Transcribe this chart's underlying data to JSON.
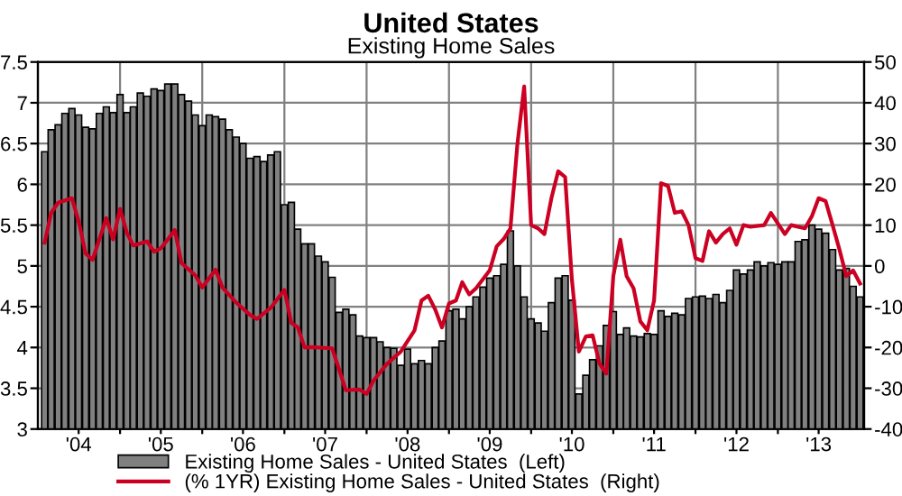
{
  "chart_data": {
    "type": "bar",
    "title": "United States",
    "subtitle": "Existing Home Sales",
    "x": [
      "2004-02",
      "2004-03",
      "2004-04",
      "2004-05",
      "2004-06",
      "2004-07",
      "2004-08",
      "2004-09",
      "2004-10",
      "2004-11",
      "2004-12",
      "2005-01",
      "2005-02",
      "2005-03",
      "2005-04",
      "2005-05",
      "2005-06",
      "2005-07",
      "2005-08",
      "2005-09",
      "2005-10",
      "2005-11",
      "2005-12",
      "2006-01",
      "2006-02",
      "2006-03",
      "2006-04",
      "2006-05",
      "2006-06",
      "2006-07",
      "2006-08",
      "2006-09",
      "2006-10",
      "2006-11",
      "2006-12",
      "2007-01",
      "2007-02",
      "2007-03",
      "2007-04",
      "2007-05",
      "2007-06",
      "2007-07",
      "2007-08",
      "2007-09",
      "2007-10",
      "2007-11",
      "2007-12",
      "2008-01",
      "2008-02",
      "2008-03",
      "2008-04",
      "2008-05",
      "2008-06",
      "2008-07",
      "2008-08",
      "2008-09",
      "2008-10",
      "2008-11",
      "2008-12",
      "2009-01",
      "2009-02",
      "2009-03",
      "2009-04",
      "2009-05",
      "2009-06",
      "2009-07",
      "2009-08",
      "2009-09",
      "2009-10",
      "2009-11",
      "2009-12",
      "2010-01",
      "2010-02",
      "2010-03",
      "2010-04",
      "2010-05",
      "2010-06",
      "2010-07",
      "2010-08",
      "2010-09",
      "2010-10",
      "2010-11",
      "2010-12",
      "2011-01",
      "2011-02",
      "2011-03",
      "2011-04",
      "2011-05",
      "2011-06",
      "2011-07",
      "2011-08",
      "2011-09",
      "2011-10",
      "2011-11",
      "2011-12",
      "2012-01",
      "2012-02",
      "2012-03",
      "2012-04",
      "2012-05",
      "2012-06",
      "2012-07",
      "2012-08",
      "2012-09",
      "2012-10",
      "2012-11",
      "2012-12",
      "2013-01",
      "2013-02",
      "2013-03",
      "2013-04",
      "2013-05",
      "2013-06",
      "2013-07",
      "2013-08",
      "2013-09",
      "2013-10",
      "2013-11",
      "2013-12",
      "2014-01"
    ],
    "series": [
      {
        "name": "Existing Home Sales - United States  (Left)",
        "color": "#808080",
        "values": [
          6.4,
          6.67,
          6.73,
          6.87,
          6.93,
          6.85,
          6.7,
          6.68,
          6.87,
          6.95,
          6.88,
          7.1,
          6.88,
          6.95,
          7.12,
          7.08,
          7.17,
          7.15,
          7.23,
          7.23,
          7.1,
          7.02,
          6.85,
          6.72,
          6.85,
          6.83,
          6.8,
          6.67,
          6.58,
          6.5,
          6.32,
          6.34,
          6.28,
          6.36,
          6.4,
          5.75,
          5.78,
          5.45,
          5.27,
          5.27,
          5.12,
          5.05,
          4.86,
          4.43,
          4.47,
          4.4,
          4.14,
          4.12,
          4.12,
          4.07,
          4.0,
          3.99,
          3.78,
          3.98,
          3.8,
          3.84,
          3.8,
          4.0,
          4.08,
          4.45,
          4.47,
          4.35,
          4.5,
          4.62,
          4.74,
          4.85,
          4.88,
          5.02,
          5.43,
          5.0,
          4.62,
          4.35,
          4.3,
          4.2,
          4.55,
          4.85,
          4.88,
          4.58,
          3.43,
          3.66,
          3.85,
          4.02,
          4.27,
          4.44,
          4.16,
          4.24,
          4.14,
          4.13,
          4.17,
          4.16,
          4.45,
          4.38,
          4.42,
          4.4,
          4.6,
          4.62,
          4.63,
          4.6,
          4.65,
          4.55,
          4.7,
          4.95,
          4.9,
          4.95,
          5.05,
          5.0,
          5.04,
          5.02,
          5.05,
          5.05,
          5.3,
          5.32,
          5.5,
          5.45,
          5.4,
          5.2,
          4.95,
          4.97,
          4.75,
          4.62
        ]
      },
      {
        "name": "(% 1YR) Existing Home Sales - United States  (Right)",
        "type": "line",
        "axis": "y2",
        "color": "#cc0022",
        "x": [
          "2004-02",
          "2004-03",
          "2004-04",
          "2004-06",
          "2004-07",
          "2004-08",
          "2004-09",
          "2004-10",
          "2004-11",
          "2004-12",
          "2005-01",
          "2005-02",
          "2005-03",
          "2005-05",
          "2005-06",
          "2005-07",
          "2005-08",
          "2005-09",
          "2005-10",
          "2005-12",
          "2006-01",
          "2006-03",
          "2006-04",
          "2006-06",
          "2006-08",
          "2006-09",
          "2006-11",
          "2007-01",
          "2007-02",
          "2007-03",
          "2007-04",
          "2007-05",
          "2007-08",
          "2007-09",
          "2007-10",
          "2007-12",
          "2008-01",
          "2008-02",
          "2008-04",
          "2008-06",
          "2008-08",
          "2008-09",
          "2008-10",
          "2008-11",
          "2008-12",
          "2009-01",
          "2009-02",
          "2009-03",
          "2009-04",
          "2009-05",
          "2009-07",
          "2009-08",
          "2009-09",
          "2009-10",
          "2009-11",
          "2009-12",
          "2010-01",
          "2010-02",
          "2010-03",
          "2010-04",
          "2010-05",
          "2010-06",
          "2010-07",
          "2010-08",
          "2010-09",
          "2010-10",
          "2010-11",
          "2010-12",
          "2011-01",
          "2011-02",
          "2011-03",
          "2011-04",
          "2011-05",
          "2011-06",
          "2011-07",
          "2011-08",
          "2011-09",
          "2011-10",
          "2011-11",
          "2011-12",
          "2012-01",
          "2012-02",
          "2012-03",
          "2012-04",
          "2012-05",
          "2012-06",
          "2012-07",
          "2012-08",
          "2012-09",
          "2012-11",
          "2012-12",
          "2013-02",
          "2013-03",
          "2013-05",
          "2013-06",
          "2013-07",
          "2013-08",
          "2013-09",
          "2013-10",
          "2013-11",
          "2013-12",
          "2014-01"
        ],
        "values": [
          5.7,
          13,
          15.5,
          16.6,
          11,
          3,
          1.5,
          6.5,
          11.7,
          6.5,
          14,
          8,
          5,
          6,
          3.5,
          4.3,
          6.5,
          8.8,
          0.7,
          -2.3,
          -5.3,
          -0.9,
          -5.3,
          -9,
          -12,
          -13,
          -10.3,
          -5.9,
          -14,
          -15,
          -20,
          -19.9,
          -20.2,
          -25.4,
          -30.5,
          -30.3,
          -31.4,
          -28.1,
          -24,
          -21,
          -15.8,
          -8.5,
          -7.3,
          -10.7,
          -15.1,
          -9.2,
          -8.5,
          -4,
          -7,
          -5.5,
          -1.1,
          4.8,
          6.6,
          9.2,
          29.9,
          44,
          10,
          9.2,
          7.8,
          16.6,
          23.2,
          21.8,
          -3.3,
          -21,
          -17.3,
          -17,
          -24,
          -26.4,
          -2.5,
          6.4,
          -2.5,
          -5.5,
          -13.6,
          -15.8,
          -8.5,
          20.3,
          19.6,
          13,
          13.4,
          10,
          1.9,
          1.2,
          8.5,
          5.7,
          7.8,
          9.2,
          5.2,
          10,
          9.6,
          10,
          13,
          7.8,
          10,
          9.2,
          12.2,
          16.6,
          15.9,
          10,
          4.1,
          -2.5,
          -1.1,
          -4.3
        ]
      }
    ],
    "xlim": [
      "2004-01-02",
      "2014-01-19"
    ],
    "xticks": [
      {
        "value": "2004-07",
        "label": "'04"
      },
      {
        "value": "2005-01",
        "label": null
      },
      {
        "value": "2005-07",
        "label": "'05"
      },
      {
        "value": "2006-01",
        "label": null
      },
      {
        "value": "2006-07",
        "label": "'06"
      },
      {
        "value": "2007-01",
        "label": null
      },
      {
        "value": "2007-07",
        "label": "'07"
      },
      {
        "value": "2008-01",
        "label": null
      },
      {
        "value": "2008-07",
        "label": "'08"
      },
      {
        "value": "2009-01",
        "label": null
      },
      {
        "value": "2009-07",
        "label": "'09"
      },
      {
        "value": "2010-01",
        "label": null
      },
      {
        "value": "2010-07",
        "label": "'10"
      },
      {
        "value": "2011-01",
        "label": null
      },
      {
        "value": "2011-07",
        "label": "'11"
      },
      {
        "value": "2012-01",
        "label": null
      },
      {
        "value": "2012-07",
        "label": "'12"
      },
      {
        "value": "2013-01",
        "label": null
      },
      {
        "value": "2013-07",
        "label": "'13"
      }
    ],
    "ylim": [
      3,
      7.5
    ],
    "yticks": [
      3,
      3.5,
      4,
      4.5,
      5,
      5.5,
      6,
      6.5,
      7,
      7.5
    ],
    "y2lim": [
      -40,
      50
    ],
    "y2ticks": [
      -40,
      -30,
      -20,
      -10,
      0,
      10,
      20,
      30,
      40,
      50
    ],
    "grid": true,
    "legend": "bottom"
  }
}
